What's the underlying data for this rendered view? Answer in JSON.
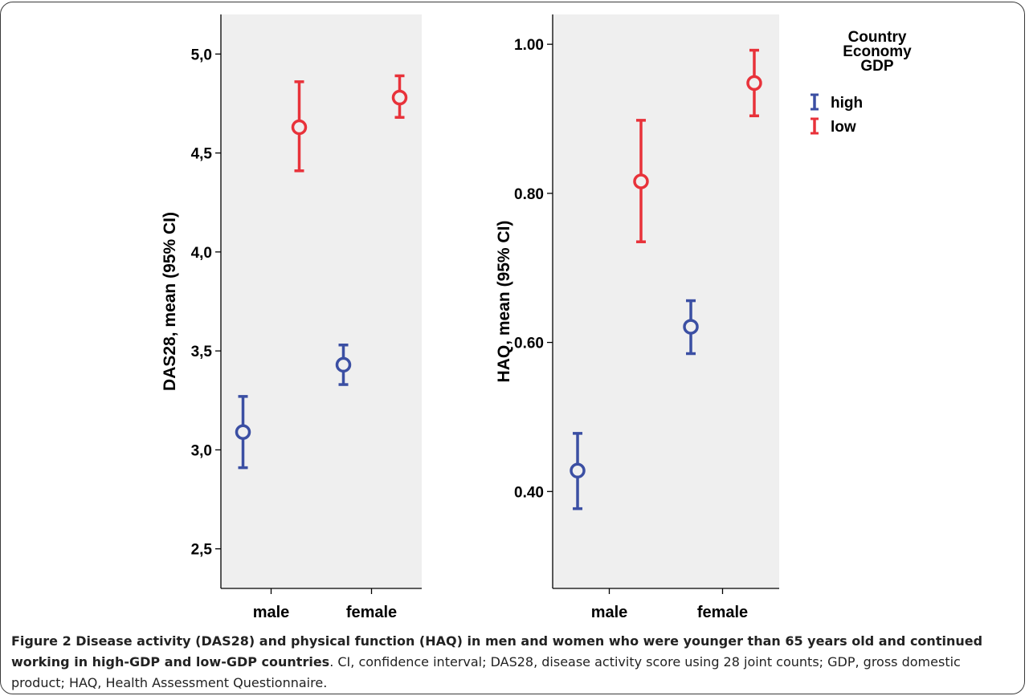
{
  "chart_data": [
    {
      "type": "scatter",
      "subtype": "error_bar",
      "categories": [
        "male",
        "female"
      ],
      "ylabel": "DAS28, mean (95% CI)",
      "ylim": [
        2.3,
        5.2
      ],
      "yticks": [
        2.5,
        3.0,
        3.5,
        4.0,
        4.5,
        5.0
      ],
      "ytick_labels": [
        "2,5",
        "3,0",
        "3,5",
        "4,0",
        "4,5",
        "5,0"
      ],
      "series": [
        {
          "name": "high",
          "color": "#3b4fa3",
          "mean": [
            3.09,
            3.43
          ],
          "lower": [
            2.91,
            3.33
          ],
          "upper": [
            3.27,
            3.53
          ]
        },
        {
          "name": "low",
          "color": "#e8323a",
          "mean": [
            4.63,
            4.78
          ],
          "lower": [
            4.41,
            4.68
          ],
          "upper": [
            4.86,
            4.89
          ]
        }
      ],
      "background": "#efefef",
      "grid": false
    },
    {
      "type": "scatter",
      "subtype": "error_bar",
      "categories": [
        "male",
        "female"
      ],
      "ylabel": "HAQ, mean (95% CI)",
      "ylim": [
        0.27,
        1.04
      ],
      "yticks": [
        0.4,
        0.6,
        0.8,
        1.0
      ],
      "ytick_labels": [
        "0.40",
        "0.60",
        "0.80",
        "1.00"
      ],
      "series": [
        {
          "name": "high",
          "color": "#3b4fa3",
          "mean": [
            0.428,
            0.621
          ],
          "lower": [
            0.377,
            0.585
          ],
          "upper": [
            0.478,
            0.656
          ]
        },
        {
          "name": "low",
          "color": "#e8323a",
          "mean": [
            0.816,
            0.948
          ],
          "lower": [
            0.735,
            0.904
          ],
          "upper": [
            0.898,
            0.992
          ]
        }
      ],
      "background": "#efefef",
      "grid": false
    }
  ],
  "legend": {
    "title_lines": [
      "Country",
      "Economy",
      "GDP"
    ],
    "items": [
      {
        "label": "high",
        "color": "#3b4fa3"
      },
      {
        "label": "low",
        "color": "#e8323a"
      }
    ],
    "placement": "top-right"
  },
  "caption": {
    "bold": "Figure 2 Disease activity (DAS28) and physical function (HAQ) in men and women who were younger than 65 years old and continued working in high-GDP and low-GDP countries",
    "rest": ". CI, confidence interval; DAS28, disease activity score using 28 joint counts; GDP, gross domestic product; HAQ, Health Assessment Questionnaire."
  }
}
